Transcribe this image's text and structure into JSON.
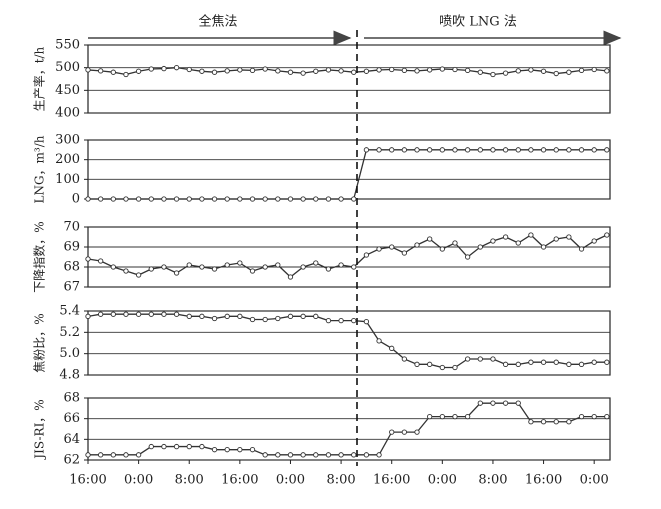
{
  "phase_labels": [
    "全焦法",
    "喷吹 LNG 法"
  ],
  "chart_data": [
    {
      "type": "line",
      "ylabel": "生产率，t/h",
      "color": "#333333",
      "x": [
        0,
        2,
        4,
        6,
        8,
        10,
        12,
        14,
        16,
        18,
        20,
        22,
        24,
        26,
        28,
        30,
        32,
        34,
        36,
        38,
        40,
        42,
        44,
        46,
        48,
        50,
        52,
        54,
        56,
        58,
        60,
        62,
        64,
        66,
        68,
        70,
        72,
        74,
        76,
        78,
        80,
        82
      ],
      "values": [
        495,
        493,
        490,
        485,
        492,
        497,
        498,
        500,
        496,
        492,
        490,
        493,
        495,
        494,
        497,
        493,
        490,
        488,
        492,
        495,
        493,
        490,
        492,
        495,
        496,
        494,
        493,
        495,
        497,
        496,
        494,
        490,
        485,
        488,
        493,
        495,
        492,
        487,
        490,
        494,
        496,
        493
      ],
      "xlim": [
        0,
        82.5
      ],
      "ylim": [
        400,
        550
      ],
      "yticks": [
        400,
        450,
        500,
        550
      ]
    },
    {
      "type": "line",
      "ylabel": "LNG，m³/h",
      "color": "#333333",
      "x": [
        0,
        2,
        4,
        6,
        8,
        10,
        12,
        14,
        16,
        18,
        20,
        22,
        24,
        26,
        28,
        30,
        32,
        34,
        36,
        38,
        40,
        42,
        44,
        46,
        48,
        50,
        52,
        54,
        56,
        58,
        60,
        62,
        64,
        66,
        68,
        70,
        72,
        74,
        76,
        78,
        80,
        82
      ],
      "values": [
        0,
        0,
        0,
        0,
        0,
        0,
        0,
        0,
        0,
        0,
        0,
        0,
        0,
        0,
        0,
        0,
        0,
        0,
        0,
        0,
        0,
        0,
        250,
        250,
        250,
        250,
        250,
        250,
        250,
        250,
        250,
        250,
        250,
        250,
        250,
        250,
        250,
        250,
        250,
        250,
        250,
        250
      ],
      "xlim": [
        0,
        82.5
      ],
      "ylim": [
        0,
        300
      ],
      "yticks": [
        0,
        100,
        200,
        300
      ]
    },
    {
      "type": "line",
      "ylabel": "下降指数，%",
      "color": "#333333",
      "x": [
        0,
        2,
        4,
        6,
        8,
        10,
        12,
        14,
        16,
        18,
        20,
        22,
        24,
        26,
        28,
        30,
        32,
        34,
        36,
        38,
        40,
        42,
        44,
        46,
        48,
        50,
        52,
        54,
        56,
        58,
        60,
        62,
        64,
        66,
        68,
        70,
        72,
        74,
        76,
        78,
        80,
        82
      ],
      "values": [
        68.4,
        68.3,
        68.0,
        67.8,
        67.6,
        67.9,
        68.0,
        67.7,
        68.1,
        68.0,
        67.9,
        68.1,
        68.2,
        67.8,
        68.0,
        68.1,
        67.5,
        68.0,
        68.2,
        67.9,
        68.1,
        68.0,
        68.6,
        68.9,
        69.0,
        68.7,
        69.1,
        69.4,
        68.9,
        69.2,
        68.5,
        69.0,
        69.3,
        69.5,
        69.2,
        69.6,
        69.0,
        69.4,
        69.5,
        68.9,
        69.3,
        69.6
      ],
      "xlim": [
        0,
        82.5
      ],
      "ylim": [
        67,
        70
      ],
      "yticks": [
        67,
        68,
        69,
        70
      ]
    },
    {
      "type": "line",
      "ylabel": "焦粉比，%",
      "color": "#333333",
      "x": [
        0,
        2,
        4,
        6,
        8,
        10,
        12,
        14,
        16,
        18,
        20,
        22,
        24,
        26,
        28,
        30,
        32,
        34,
        36,
        38,
        40,
        42,
        44,
        46,
        48,
        50,
        52,
        54,
        56,
        58,
        60,
        62,
        64,
        66,
        68,
        70,
        72,
        74,
        76,
        78,
        80,
        82
      ],
      "values": [
        5.35,
        5.37,
        5.37,
        5.37,
        5.37,
        5.37,
        5.37,
        5.37,
        5.35,
        5.35,
        5.33,
        5.35,
        5.35,
        5.32,
        5.32,
        5.33,
        5.35,
        5.35,
        5.35,
        5.31,
        5.31,
        5.31,
        5.3,
        5.12,
        5.05,
        4.95,
        4.9,
        4.9,
        4.87,
        4.87,
        4.95,
        4.95,
        4.95,
        4.9,
        4.9,
        4.92,
        4.92,
        4.92,
        4.9,
        4.9,
        4.92,
        4.92
      ],
      "xlim": [
        0,
        82.5
      ],
      "ylim": [
        4.8,
        5.4
      ],
      "yticks": [
        {
          "value": 4.8,
          "label": "4.8"
        },
        {
          "value": 5.0,
          "label": "5.0"
        },
        {
          "value": 5.2,
          "label": "5.2"
        },
        {
          "value": 5.4,
          "label": "5.4"
        }
      ]
    },
    {
      "type": "line",
      "ylabel": "JIS-RI，%",
      "color": "#333333",
      "x": [
        0,
        2,
        4,
        6,
        8,
        10,
        12,
        14,
        16,
        18,
        20,
        22,
        24,
        26,
        28,
        30,
        32,
        34,
        36,
        38,
        40,
        42,
        44,
        46,
        48,
        50,
        52,
        54,
        56,
        58,
        60,
        62,
        64,
        66,
        68,
        70,
        72,
        74,
        76,
        78,
        80,
        82
      ],
      "values": [
        62.5,
        62.5,
        62.5,
        62.5,
        62.5,
        63.3,
        63.3,
        63.3,
        63.3,
        63.3,
        63.0,
        63.0,
        63.0,
        63.0,
        62.5,
        62.5,
        62.5,
        62.5,
        62.5,
        62.5,
        62.5,
        62.5,
        62.5,
        62.5,
        64.7,
        64.7,
        64.7,
        66.2,
        66.2,
        66.2,
        66.2,
        67.5,
        67.5,
        67.5,
        67.5,
        65.7,
        65.7,
        65.7,
        65.7,
        66.2,
        66.2,
        66.2
      ],
      "xlim": [
        0,
        82.5
      ],
      "ylim": [
        62,
        68
      ],
      "yticks": [
        62,
        64,
        66,
        68
      ],
      "xticks": [
        {
          "value": 0,
          "label": "16:00"
        },
        {
          "value": 8,
          "label": "0:00"
        },
        {
          "value": 16,
          "label": "8:00"
        },
        {
          "value": 24,
          "label": "16:00"
        },
        {
          "value": 32,
          "label": "0:00"
        },
        {
          "value": 40,
          "label": "8:00"
        },
        {
          "value": 48,
          "label": "16:00"
        },
        {
          "value": 56,
          "label": "0:00"
        },
        {
          "value": 64,
          "label": "8:00"
        },
        {
          "value": 72,
          "label": "16:00"
        },
        {
          "value": 80,
          "label": "0:00"
        }
      ]
    }
  ]
}
